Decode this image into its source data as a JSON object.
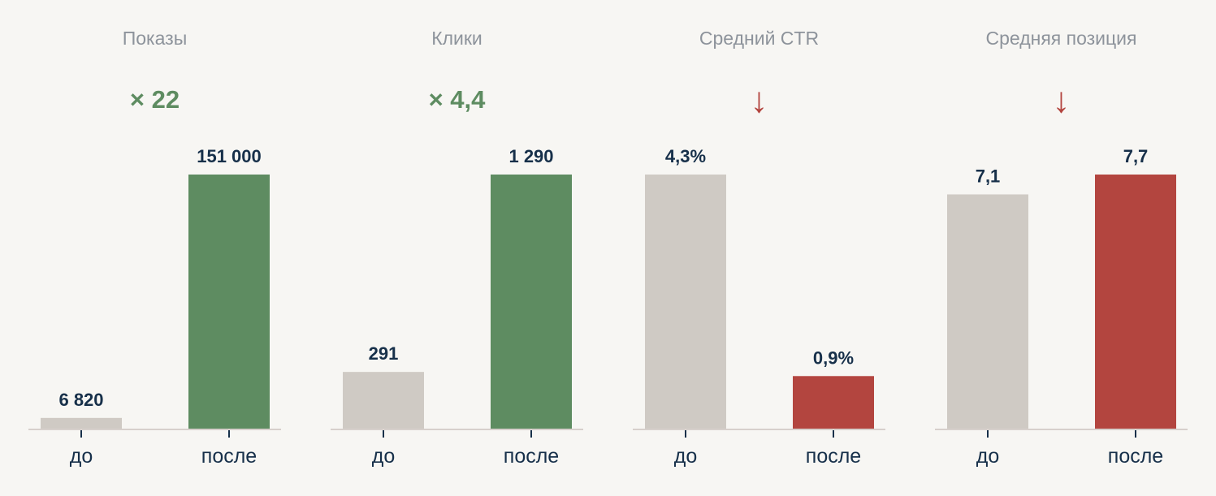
{
  "colors": {
    "before": "#cfcac4",
    "after_good": "#5e8c61",
    "after_bad": "#b3453f",
    "text_dark": "#17304a",
    "text_muted": "#8d939b",
    "axis": "#d7d0cc"
  },
  "chart_data": [
    {
      "type": "bar",
      "title": "Показы",
      "badge": "× 22",
      "badge_kind": "increase",
      "categories": [
        "до",
        "после"
      ],
      "values": [
        6820,
        151000
      ],
      "value_labels": [
        "6 820",
        "151 000"
      ],
      "ylim": [
        0,
        151000
      ]
    },
    {
      "type": "bar",
      "title": "Клики",
      "badge": "× 4,4",
      "badge_kind": "increase",
      "categories": [
        "до",
        "после"
      ],
      "values": [
        291,
        1290
      ],
      "value_labels": [
        "291",
        "1 290"
      ],
      "ylim": [
        0,
        1290
      ]
    },
    {
      "type": "bar",
      "title": "Средний CTR",
      "badge": "↓",
      "badge_kind": "decrease",
      "categories": [
        "до",
        "после"
      ],
      "values": [
        4.3,
        0.9
      ],
      "value_labels": [
        "4,3%",
        "0,9%"
      ],
      "ylim": [
        0,
        4.3
      ]
    },
    {
      "type": "bar",
      "title": "Средняя позиция",
      "badge": "↓",
      "badge_kind": "decrease",
      "categories": [
        "до",
        "после"
      ],
      "values": [
        7.1,
        7.7
      ],
      "value_labels": [
        "7,1",
        "7,7"
      ],
      "ylim": [
        0,
        7.7
      ]
    }
  ]
}
